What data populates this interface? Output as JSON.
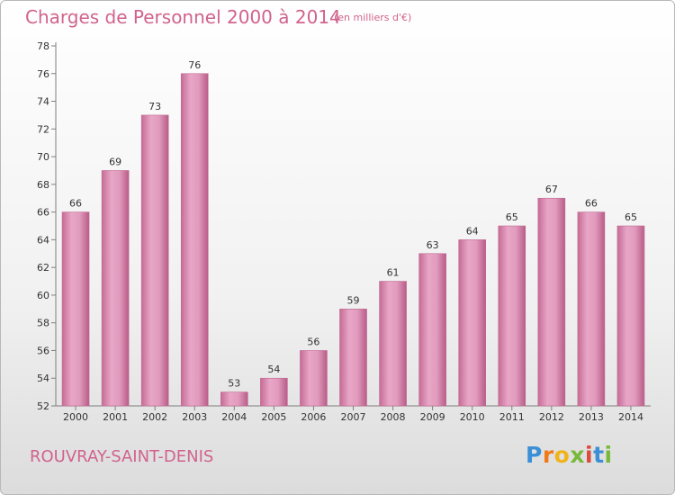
{
  "header": {
    "title": "Charges de Personnel 2000 à 2014",
    "subtitle": "(en milliers d'€)"
  },
  "footer": {
    "town": "ROUVRAY-SAINT-DENIS",
    "logo": {
      "letters": [
        "P",
        "r",
        "o",
        "x",
        "i",
        "t",
        "i"
      ],
      "colors": [
        "#3a8fd6",
        "#f07a1a",
        "#f0b41a",
        "#78b93a",
        "#d94b3b",
        "#3a8fd6",
        "#78b93a"
      ]
    }
  },
  "chart_data": {
    "type": "bar",
    "title": "Charges de Personnel 2000 à 2014",
    "subtitle": "(en milliers d'€)",
    "categories": [
      "2000",
      "2001",
      "2002",
      "2003",
      "2004",
      "2005",
      "2006",
      "2007",
      "2008",
      "2009",
      "2010",
      "2011",
      "2012",
      "2013",
      "2014"
    ],
    "values": [
      66,
      69,
      73,
      76,
      53,
      54,
      56,
      59,
      61,
      63,
      64,
      65,
      67,
      66,
      65
    ],
    "ylim": [
      52,
      78
    ],
    "yticks": [
      52,
      54,
      56,
      58,
      60,
      62,
      64,
      66,
      68,
      70,
      72,
      74,
      76,
      78
    ],
    "grid": false,
    "legend": "none",
    "bar_color": "#d87ba6",
    "axis_color": "#7f7f7f"
  }
}
